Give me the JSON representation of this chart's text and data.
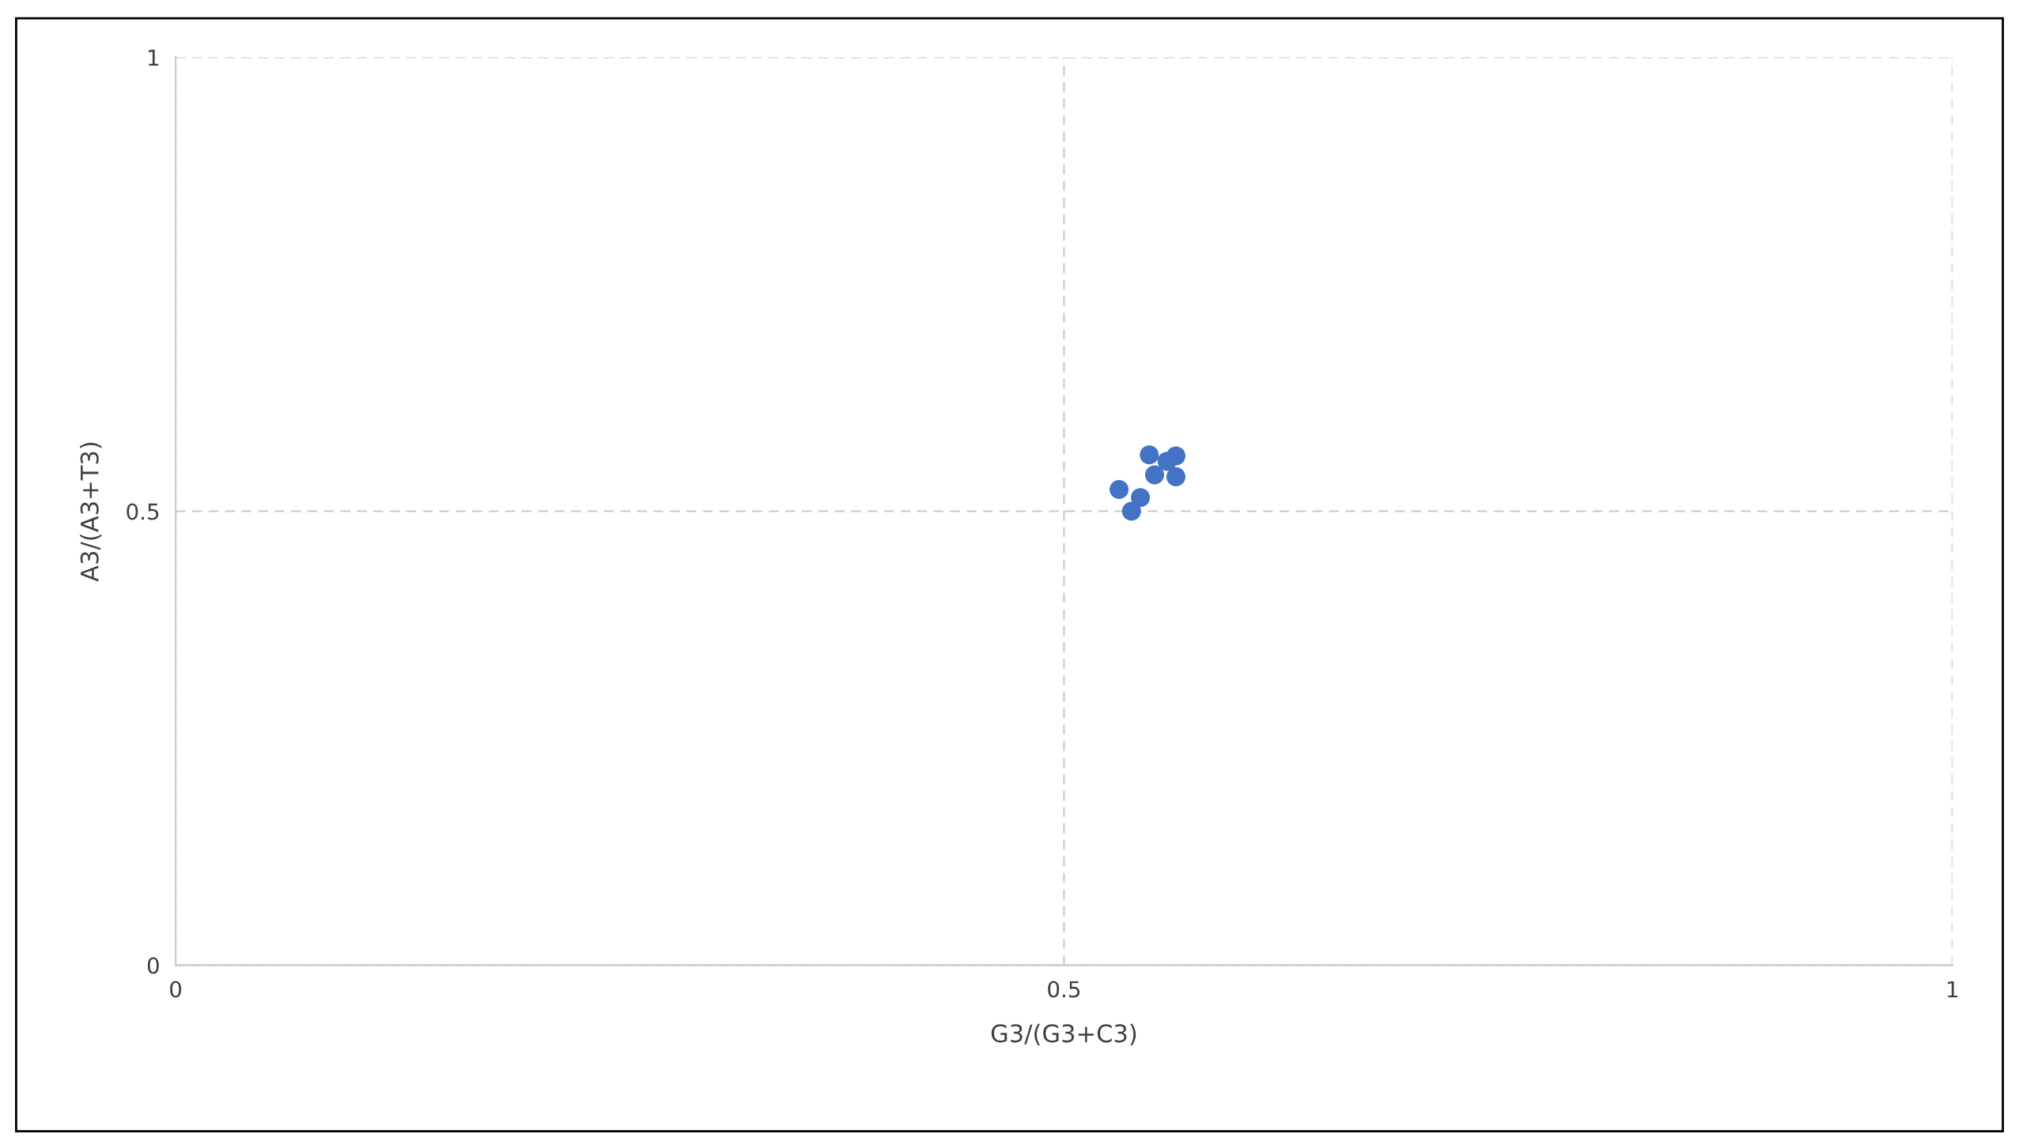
{
  "chart_data": {
    "type": "scatter",
    "xlabel": "G3/(G3+C3)",
    "ylabel": "A3/(A3+T3)",
    "x": [
      0.531,
      0.543,
      0.538,
      0.548,
      0.563,
      0.551,
      0.563,
      0.558
    ],
    "series": [
      {
        "color": "#4472c4",
        "values": [
          0.524,
          0.515,
          0.5,
          0.562,
          0.561,
          0.54,
          0.538,
          0.555
        ]
      }
    ],
    "xlim": [
      0,
      1
    ],
    "ylim": [
      0,
      1
    ],
    "xticks": [
      0,
      0.5,
      1
    ],
    "yticks": [
      0,
      0.5,
      1
    ],
    "grid": true,
    "marker": "circle"
  }
}
